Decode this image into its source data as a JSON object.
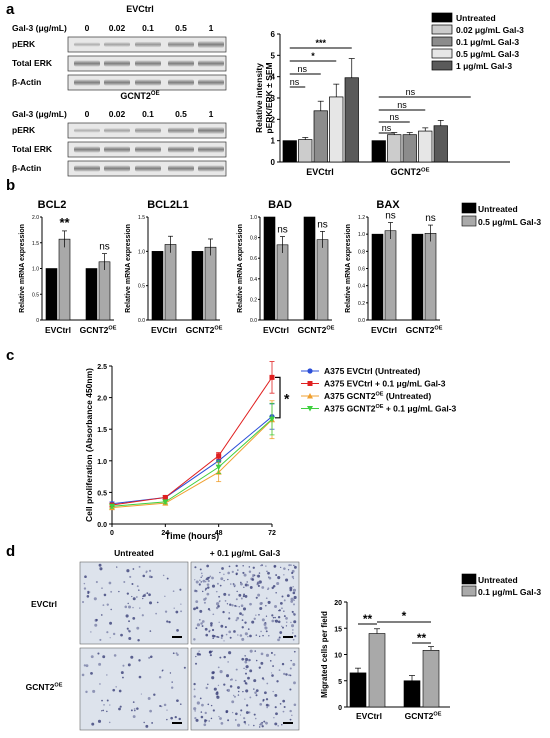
{
  "panel_labels": {
    "a": "a",
    "b": "b",
    "c": "c",
    "d": "d"
  },
  "blot": {
    "group1": "EVCtrl",
    "group2_base": "GCNT2",
    "group2_sup": "OE",
    "gal3_label": "Gal-3 (μg/mL)",
    "concentrations": [
      "0",
      "0.02",
      "0.1",
      "0.5",
      "1"
    ],
    "rows": [
      "pERK",
      "Total ERK",
      "β-Actin"
    ]
  },
  "chart_a": {
    "type": "bar",
    "ylabel_line1": "Relative intensity",
    "ylabel_line2": "pERK/ERK ± SEM",
    "yticks": [
      "0",
      "1",
      "2",
      "3",
      "4",
      "5",
      "6"
    ],
    "ylim": [
      0,
      6
    ],
    "groups": [
      "EVCtrl",
      "GCNT2"
    ],
    "group2_sup": "OE",
    "legend": [
      "Untreated",
      "0.02 μg/mL Gal-3",
      "0.1 μg/mL Gal-3",
      "0.5 μg/mL Gal-3",
      "1 μg/mL Gal-3"
    ],
    "colors": [
      "#000000",
      "#cccccc",
      "#8c8c8c",
      "#e6e6e6",
      "#5a5a5a"
    ],
    "sig_labels": [
      "***",
      "*",
      "ns",
      "ns",
      "ns",
      "ns",
      "ns",
      "ns"
    ]
  },
  "chart_data": [
    {
      "type": "bar",
      "categories": [
        "EVCtrl",
        "GCNT2OE"
      ],
      "series": [
        {
          "name": "Untreated",
          "values": [
            1.0,
            1.0
          ],
          "errors": [
            0,
            0
          ]
        },
        {
          "name": "0.02 μg/mL Gal-3",
          "values": [
            1.05,
            1.28
          ],
          "errors": [
            0.1,
            0.1
          ]
        },
        {
          "name": "0.1 μg/mL Gal-3",
          "values": [
            2.4,
            1.28
          ],
          "errors": [
            0.45,
            0.1
          ]
        },
        {
          "name": "0.5 μg/mL Gal-3",
          "values": [
            3.05,
            1.45
          ],
          "errors": [
            0.6,
            0.15
          ]
        },
        {
          "name": "1 μg/mL Gal-3",
          "values": [
            3.95,
            1.7
          ],
          "errors": [
            0.9,
            0.25
          ]
        }
      ],
      "ylabel": "Relative intensity pERK/ERK ± SEM",
      "ylim": [
        0,
        6
      ]
    },
    {
      "type": "bar",
      "subcharts": [
        {
          "title": "BCL2",
          "values": {
            "EVCtrl": [
              1.0,
              1.57
            ],
            "GCNT2OE": [
              1.0,
              1.13
            ]
          },
          "ylim": [
            0,
            2.0
          ],
          "yticks": [
            "0",
            "0.5",
            "1.0",
            "1.5",
            "2.0"
          ],
          "sig": [
            "**",
            "ns"
          ]
        },
        {
          "title": "BCL2L1",
          "values": {
            "EVCtrl": [
              1.0,
              1.1
            ],
            "GCNT2OE": [
              1.0,
              1.06
            ]
          },
          "ylim": [
            0,
            1.5
          ],
          "yticks": [
            "0.0",
            "0.5",
            "1.0",
            "1.5"
          ],
          "sig": [
            "",
            ""
          ]
        },
        {
          "title": "BAD",
          "values": {
            "EVCtrl": [
              1.0,
              0.73
            ],
            "GCNT2OE": [
              1.0,
              0.78
            ]
          },
          "ylim": [
            0,
            1.0
          ],
          "yticks": [
            "0.0",
            "0.2",
            "0.4",
            "0.6",
            "0.8",
            "1.0"
          ],
          "sig": [
            "ns",
            "ns"
          ]
        },
        {
          "title": "BAX",
          "values": {
            "EVCtrl": [
              1.0,
              1.04
            ],
            "GCNT2OE": [
              1.0,
              1.01
            ]
          },
          "ylim": [
            0,
            1.2
          ],
          "yticks": [
            "0.0",
            "0.2",
            "0.4",
            "0.6",
            "0.8",
            "1.0",
            "1.2"
          ],
          "sig": [
            "ns",
            "ns"
          ]
        }
      ],
      "legend": [
        "Untreated",
        "0.5 μg/mL Gal-3"
      ],
      "ylabel": "Relative mRNA expression"
    },
    {
      "type": "line",
      "x": [
        0,
        24,
        48,
        72
      ],
      "xlabel": "Time (hours)",
      "ylabel": "Cell proliferation (Absorbance 450nm)",
      "ylim": [
        0.0,
        2.5
      ],
      "yticks": [
        "0.0",
        "0.5",
        "1.0",
        "1.5",
        "2.0",
        "2.5"
      ],
      "xticks": [
        "0",
        "24",
        "48",
        "72"
      ],
      "series": [
        {
          "name": "A375 EVCtrl (Untreated)",
          "color": "#2b4fd8",
          "values": [
            0.32,
            0.42,
            1.0,
            1.7
          ],
          "errors": [
            0.03,
            0.03,
            0.08,
            0.2
          ]
        },
        {
          "name": "A375 EVCtrl + 0.1 μg/mL Gal-3",
          "color": "#e02020",
          "values": [
            0.3,
            0.42,
            1.08,
            2.32
          ],
          "errors": [
            0.03,
            0.03,
            0.05,
            0.25
          ]
        },
        {
          "name": "A375 GCNT2OE (Untreated)",
          "color": "#f0a030",
          "values": [
            0.26,
            0.33,
            0.82,
            1.65
          ],
          "errors": [
            0.03,
            0.03,
            0.15,
            0.3
          ]
        },
        {
          "name": "A375 GCNT2OE + 0.1 μg/mL Gal-3",
          "color": "#40d040",
          "values": [
            0.28,
            0.35,
            0.9,
            1.66
          ],
          "errors": [
            0.03,
            0.03,
            0.1,
            0.25
          ]
        }
      ],
      "sig": "*"
    },
    {
      "type": "bar",
      "categories": [
        "EVCtrl",
        "GCNT2OE"
      ],
      "series": [
        {
          "name": "Untreated",
          "values": [
            6.5,
            5.0
          ]
        },
        {
          "name": "0.1 μg/mL Gal-3",
          "values": [
            14.0,
            10.8
          ]
        }
      ],
      "ylabel": "Migrated cells per field",
      "ylim": [
        0,
        20
      ],
      "yticks": [
        "0",
        "5",
        "10",
        "15",
        "20"
      ],
      "sig": [
        "**",
        "**",
        "*"
      ]
    }
  ],
  "panel_b": {
    "legend": [
      "Untreated",
      "0.5 μg/mL Gal-3"
    ],
    "ylabel": "Relative mRNA expression",
    "xcats": [
      "EVCtrl",
      "GCNT2"
    ],
    "xsup": "OE"
  },
  "panel_c": {
    "legend": [
      "A375 EVCtrl (Untreated)",
      "A375 EVCtrl + 0.1 μg/mL Gal-3",
      "A375 GCNT2",
      "A375 GCNT2"
    ],
    "legend_tail": [
      "",
      "",
      "(Untreated)",
      "+ 0.1 μg/mL Gal-3"
    ],
    "legend_sup": [
      "",
      "",
      "OE",
      "OE"
    ]
  },
  "panel_d": {
    "col_headers": [
      "Untreated",
      "+ 0.1 μg/mL Gal-3"
    ],
    "row_labels": [
      "EVCtrl",
      "GCNT2"
    ],
    "row_sup": [
      "",
      "OE"
    ],
    "legend": [
      "Untreated",
      "0.1 μg/mL Gal-3"
    ],
    "ylabel": "Migrated cells per field",
    "xcats": [
      "EVCtrl",
      "GCNT2"
    ],
    "xsup": "OE"
  }
}
